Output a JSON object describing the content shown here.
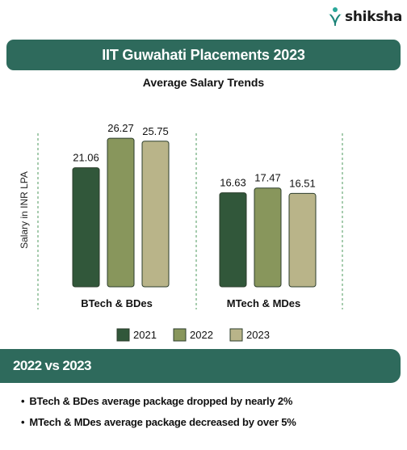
{
  "logo": {
    "text": "shiksha",
    "icon": "shiksha-logo-icon"
  },
  "title": "IIT Guwahati Placements 2023",
  "chart_data": {
    "type": "bar",
    "title": "Average Salary Trends",
    "xlabel": "",
    "ylabel": "Salary in INR LPA",
    "categories": [
      "BTech & BDes",
      "MTech & MDes"
    ],
    "series": [
      {
        "name": "2021",
        "values": [
          21.06,
          16.63
        ],
        "color": "#31573a"
      },
      {
        "name": "2022",
        "values": [
          26.27,
          17.47
        ],
        "color": "#88965c"
      },
      {
        "name": "2023",
        "values": [
          25.75,
          16.51
        ],
        "color": "#b9b489"
      }
    ],
    "ylim": [
      0,
      30
    ],
    "grid": false,
    "legend": "bottom",
    "data_labels": true
  },
  "section": {
    "title": "2022 vs 2023"
  },
  "bullets": [
    "BTech & BDes average package dropped by nearly 2%",
    "MTech & MDes average package decreased by over 5%"
  ]
}
